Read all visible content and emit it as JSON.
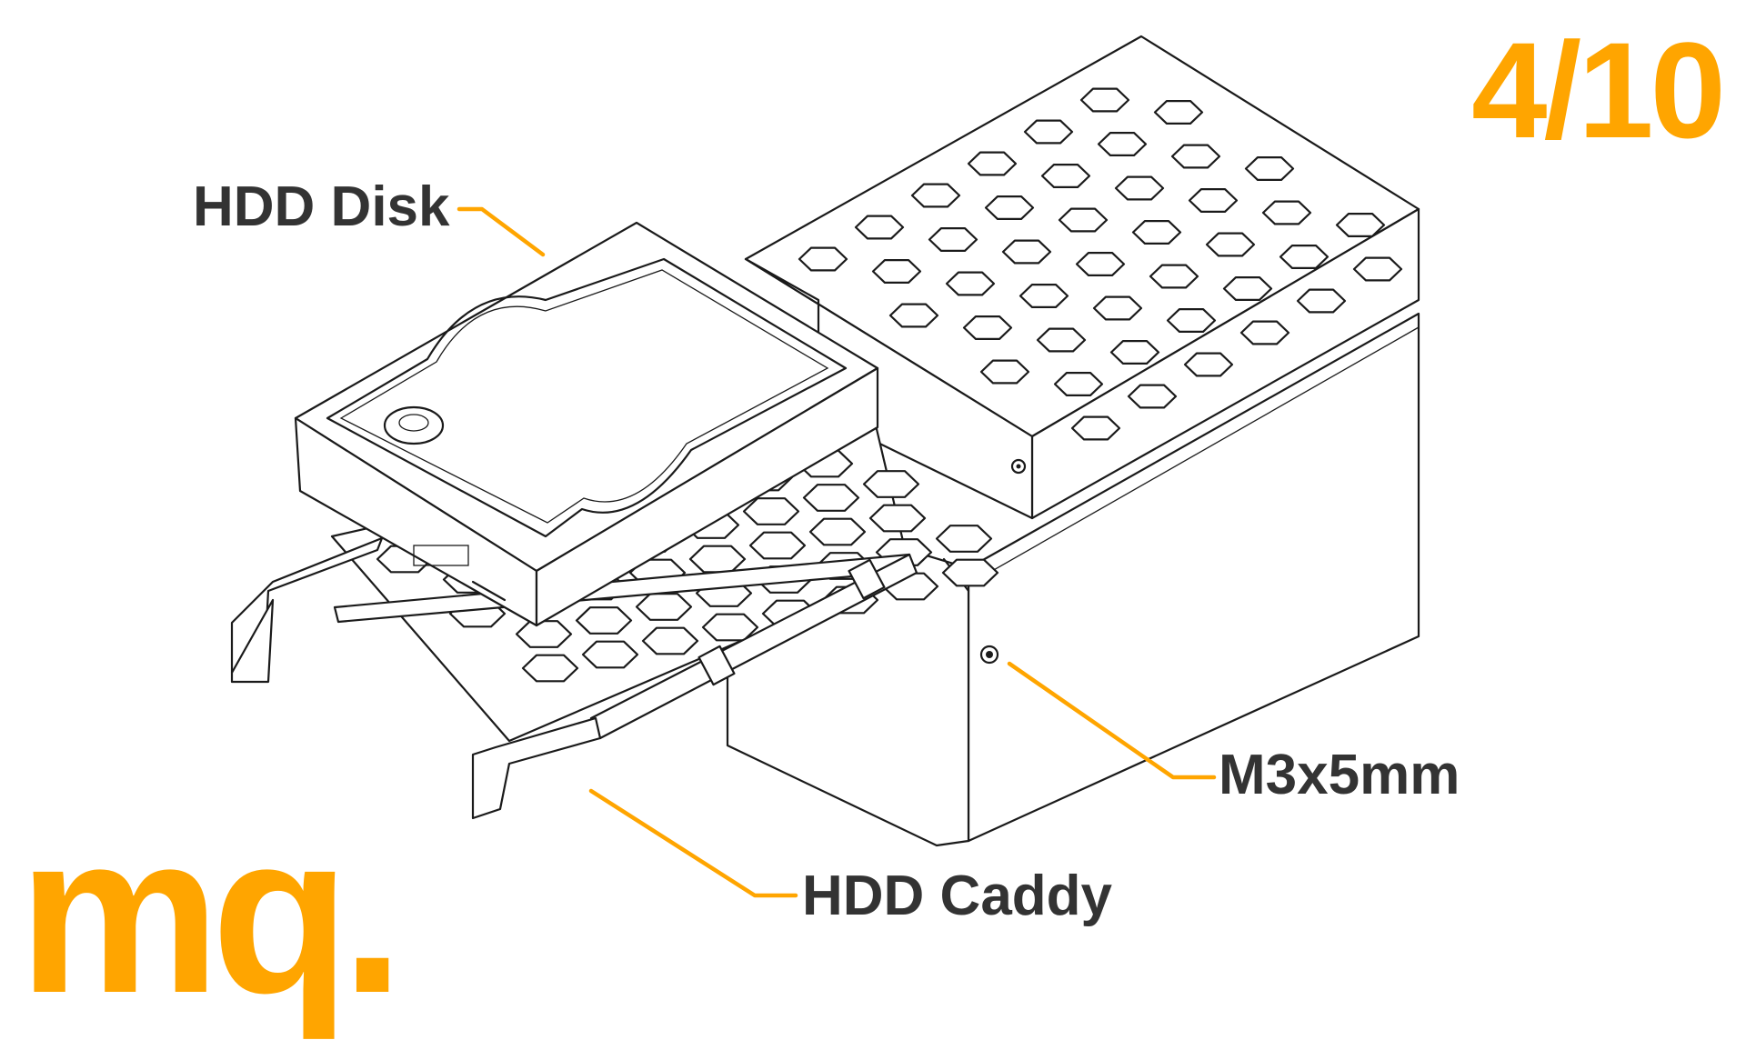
{
  "step_counter": "4/10",
  "logo": {
    "text": "mq.",
    "color": "#FFA500"
  },
  "accent_color": "#FFA500",
  "text_color": "#333333",
  "callouts": [
    {
      "id": "hdd-disk",
      "label": "HDD Disk"
    },
    {
      "id": "hdd-caddy",
      "label": "HDD Caddy"
    },
    {
      "id": "screw",
      "label": "M3x5mm"
    }
  ],
  "parts": [
    "enclosure",
    "honeycomb-lid",
    "hdd-disk",
    "hdd-caddy",
    "screw"
  ]
}
